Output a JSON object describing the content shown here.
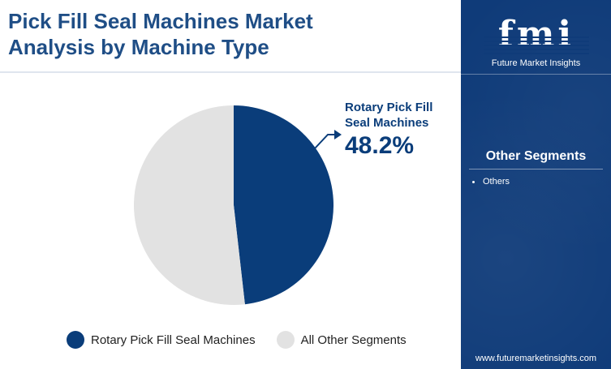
{
  "title_line1": "Pick Fill Seal Machines Market",
  "title_line2": "Analysis by Machine Type",
  "chart_data": {
    "type": "pie",
    "categories": [
      "Rotary Pick Fill Seal Machines",
      "All Other Segments"
    ],
    "values": [
      48.2,
      51.8
    ],
    "colors": [
      "#0a3d7a",
      "#e2e2e2"
    ],
    "legend_position": "bottom",
    "callout": {
      "label_line1": "Rotary Pick Fill",
      "label_line2": "Seal Machines",
      "value": "48.2%"
    }
  },
  "legend": {
    "items": [
      {
        "label": "Rotary Pick Fill Seal Machines",
        "color": "#0a3d7a"
      },
      {
        "label": "All Other Segments",
        "color": "#e2e2e2"
      }
    ]
  },
  "sidebar": {
    "logo_text": "fmi",
    "logo_subtitle": "Future Market Insights",
    "segments_title": "Other Segments",
    "segments": [
      "Others"
    ],
    "footer_url": "www.futuremarketinsights.com"
  },
  "colors": {
    "title": "#1f4e86",
    "sidebar_bg": "#0f3b79"
  }
}
